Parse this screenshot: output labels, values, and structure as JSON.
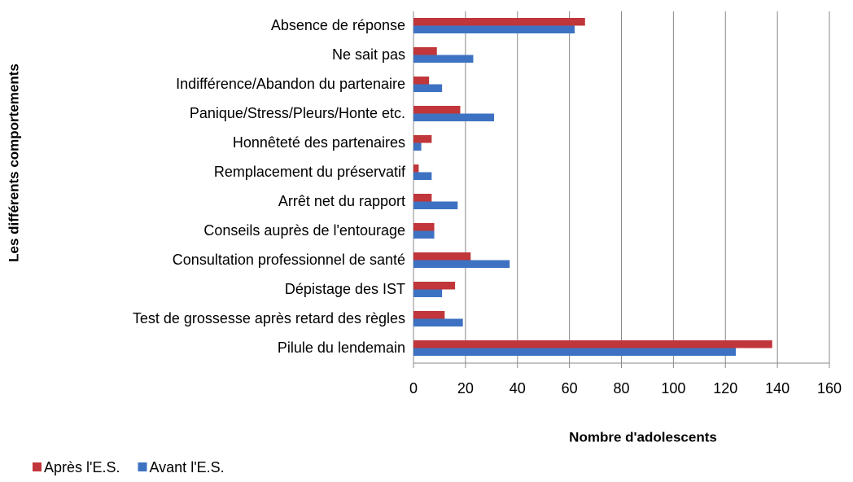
{
  "chart_data": {
    "type": "hbar",
    "xlabel": "Nombre d'adolescents",
    "ylabel": "Les différents comportements",
    "categories": [
      "Absence de réponse",
      "Ne sait pas",
      "Indifférence/Abandon du partenaire",
      "Panique/Stress/Pleurs/Honte etc.",
      "Honnêteté des partenaires",
      "Remplacement du préservatif",
      "Arrêt net du rapport",
      "Conseils auprès de l'entourage",
      "Consultation professionnel de santé",
      "Dépistage des IST",
      "Test de grossesse après retard des règles",
      "Pilule du lendemain"
    ],
    "series": [
      {
        "name": "Après l'E.S.",
        "color": "#c0363a",
        "values": [
          66,
          9,
          6,
          18,
          7,
          2,
          7,
          8,
          22,
          16,
          12,
          138
        ]
      },
      {
        "name": "Avant l'E.S.",
        "color": "#3d72c2",
        "values": [
          62,
          23,
          11,
          31,
          3,
          7,
          17,
          8,
          37,
          11,
          19,
          124
        ]
      }
    ],
    "xlim": [
      0,
      160
    ],
    "xticks": [
      0,
      20,
      40,
      60,
      80,
      100,
      120,
      140,
      160
    ],
    "grid": true,
    "legend": "bottom-left"
  }
}
